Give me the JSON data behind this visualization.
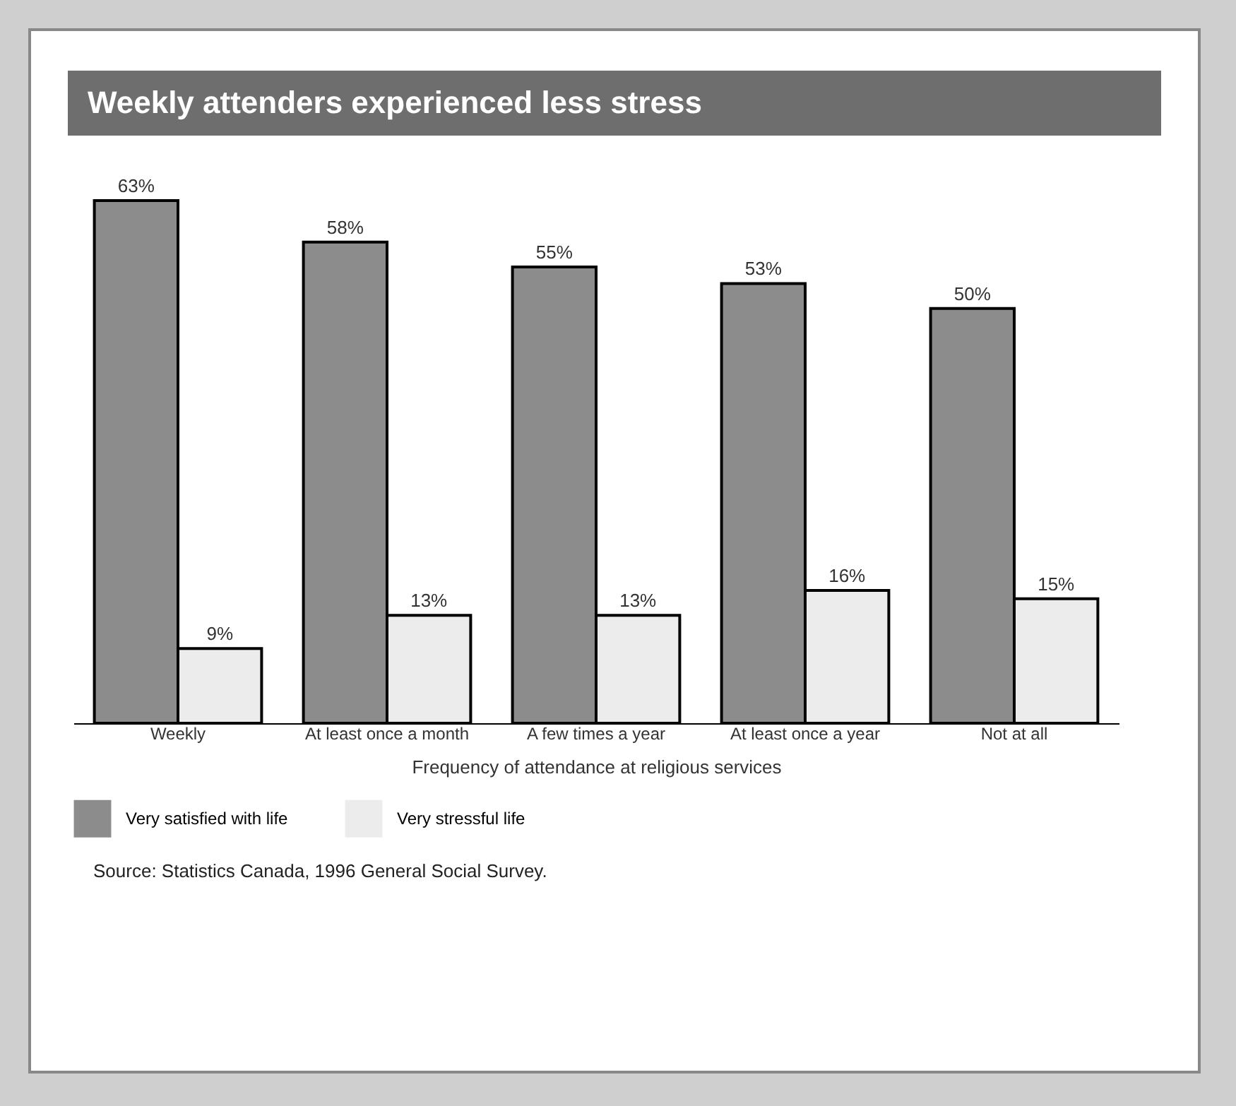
{
  "chart_data": {
    "type": "bar",
    "title": "Weekly attenders experienced less stress",
    "xlabel": "Frequency of attendance at religious services",
    "categories": [
      "Weekly",
      "At least once a month",
      "A few times a year",
      "At least once a year",
      "Not at all"
    ],
    "series": [
      {
        "name": "Very satisfied with life",
        "color": "#8c8c8c",
        "values": [
          63,
          58,
          55,
          53,
          50
        ],
        "value_labels": [
          "63%",
          "58%",
          "55%",
          "53%",
          "50%"
        ]
      },
      {
        "name": "Very stressful life",
        "color": "#ececec",
        "values": [
          9,
          13,
          13,
          16,
          15
        ],
        "value_labels": [
          "9%",
          "13%",
          "13%",
          "16%",
          "15%"
        ]
      }
    ],
    "tick_labels": "x",
    "legend": "bottom",
    "annotations": [
      "Source: Statistics Canada, 1996 General Social Survey."
    ]
  }
}
